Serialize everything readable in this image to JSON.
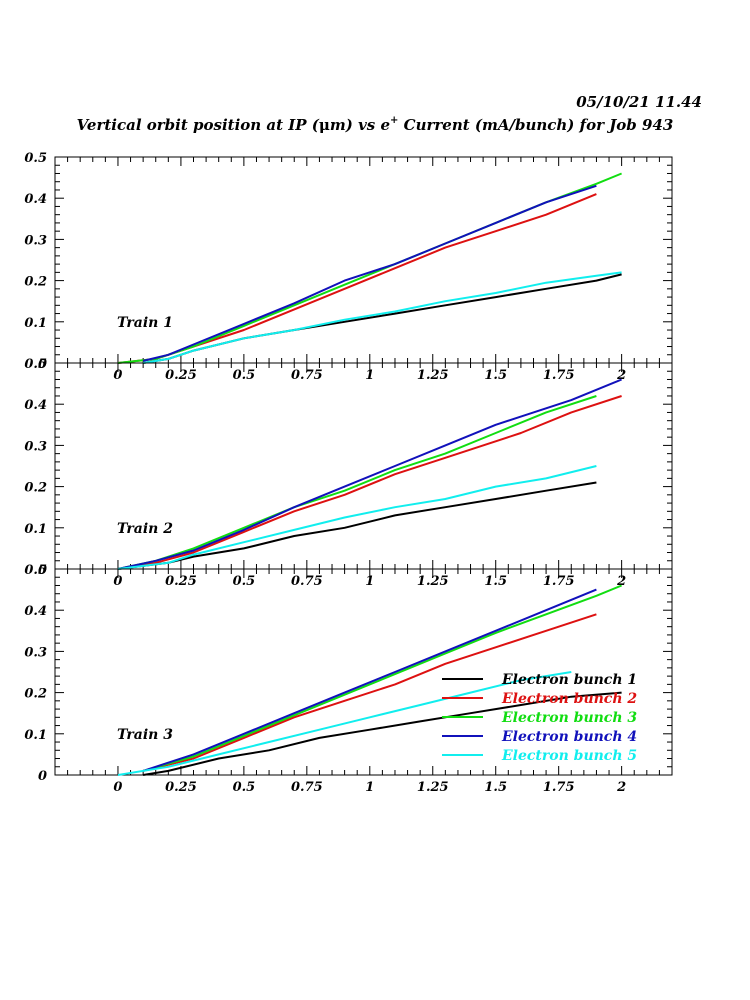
{
  "header": {
    "timestamp": "05/10/21   11.44",
    "title_prefix": "Vertical orbit position at IP (",
    "title_mu": "μ",
    "title_mid": "m) vs e",
    "title_sup": "+",
    "title_suffix": " Current (mA/bunch) for Job 943"
  },
  "colors": {
    "bunch1": "#000000",
    "bunch2": "#dd1111",
    "bunch3": "#11dd11",
    "bunch4": "#1111bb",
    "bunch5": "#11eeee"
  },
  "chart_data": [
    {
      "type": "line",
      "panel_label": "Train 1",
      "xlim": [
        -0.25,
        2.2
      ],
      "ylim": [
        0,
        0.5
      ],
      "x_ticks": [
        "0",
        "0.25",
        "0.5",
        "0.75",
        "1",
        "1.25",
        "1.5",
        "1.75",
        "2"
      ],
      "y_ticks": [
        "0",
        "0.1",
        "0.2",
        "0.3",
        "0.4",
        "0.5"
      ],
      "series": [
        {
          "color_key": "bunch1",
          "x": [
            0.1,
            0.2,
            0.3,
            0.5,
            0.7,
            0.9,
            1.1,
            1.3,
            1.5,
            1.7,
            1.9,
            2.0
          ],
          "y": [
            0,
            0.01,
            0.03,
            0.06,
            0.08,
            0.1,
            0.12,
            0.14,
            0.16,
            0.18,
            0.2,
            0.215
          ]
        },
        {
          "color_key": "bunch2",
          "x": [
            0,
            0.15,
            0.3,
            0.5,
            0.7,
            0.9,
            1.1,
            1.3,
            1.5,
            1.7,
            1.9
          ],
          "y": [
            0,
            0.01,
            0.04,
            0.08,
            0.13,
            0.18,
            0.23,
            0.28,
            0.32,
            0.36,
            0.41
          ]
        },
        {
          "color_key": "bunch3",
          "x": [
            0,
            0.15,
            0.3,
            0.5,
            0.7,
            0.9,
            1.1,
            1.3,
            1.5,
            1.7,
            1.9,
            2.0
          ],
          "y": [
            0,
            0.01,
            0.04,
            0.09,
            0.14,
            0.19,
            0.24,
            0.29,
            0.34,
            0.39,
            0.435,
            0.46
          ]
        },
        {
          "color_key": "bunch4",
          "x": [
            0.1,
            0.2,
            0.3,
            0.5,
            0.7,
            0.9,
            1.1,
            1.3,
            1.5,
            1.7,
            1.9
          ],
          "y": [
            0.005,
            0.02,
            0.045,
            0.095,
            0.145,
            0.2,
            0.24,
            0.29,
            0.34,
            0.39,
            0.43
          ]
        },
        {
          "color_key": "bunch5",
          "x": [
            0.1,
            0.2,
            0.3,
            0.5,
            0.7,
            0.9,
            1.1,
            1.3,
            1.5,
            1.7,
            1.9,
            2.0
          ],
          "y": [
            0,
            0.01,
            0.03,
            0.06,
            0.08,
            0.105,
            0.125,
            0.15,
            0.17,
            0.195,
            0.212,
            0.22
          ]
        }
      ]
    },
    {
      "type": "line",
      "panel_label": "Train 2",
      "xlim": [
        -0.25,
        2.2
      ],
      "ylim": [
        0,
        0.5
      ],
      "x_ticks": [
        "0",
        "0.25",
        "0.5",
        "0.75",
        "1",
        "1.25",
        "1.5",
        "1.75",
        "2"
      ],
      "y_ticks": [
        "0",
        "0.1",
        "0.2",
        "0.3",
        "0.4",
        "0.5"
      ],
      "series": [
        {
          "color_key": "bunch1",
          "x": [
            0,
            0.2,
            0.3,
            0.5,
            0.7,
            0.9,
            1.1,
            1.3,
            1.5,
            1.7,
            1.9
          ],
          "y": [
            0,
            0.015,
            0.03,
            0.05,
            0.08,
            0.1,
            0.13,
            0.15,
            0.17,
            0.19,
            0.21
          ]
        },
        {
          "color_key": "bunch2",
          "x": [
            0,
            0.15,
            0.3,
            0.5,
            0.7,
            0.9,
            1.1,
            1.3,
            1.5,
            1.6,
            1.8,
            2.0
          ],
          "y": [
            0,
            0.015,
            0.04,
            0.09,
            0.14,
            0.18,
            0.23,
            0.27,
            0.31,
            0.33,
            0.38,
            0.42
          ]
        },
        {
          "color_key": "bunch3",
          "x": [
            0,
            0.15,
            0.3,
            0.5,
            0.7,
            0.9,
            1.1,
            1.3,
            1.5,
            1.7,
            1.9
          ],
          "y": [
            0,
            0.02,
            0.05,
            0.1,
            0.15,
            0.19,
            0.24,
            0.28,
            0.33,
            0.38,
            0.42
          ]
        },
        {
          "color_key": "bunch4",
          "x": [
            0,
            0.15,
            0.3,
            0.5,
            0.7,
            0.9,
            1.1,
            1.3,
            1.5,
            1.6,
            1.8,
            2.0
          ],
          "y": [
            0,
            0.02,
            0.045,
            0.095,
            0.15,
            0.2,
            0.25,
            0.3,
            0.35,
            0.37,
            0.41,
            0.46
          ]
        },
        {
          "color_key": "bunch5",
          "x": [
            0,
            0.2,
            0.3,
            0.5,
            0.7,
            0.9,
            1.1,
            1.3,
            1.5,
            1.7,
            1.9
          ],
          "y": [
            0,
            0.015,
            0.035,
            0.065,
            0.095,
            0.125,
            0.15,
            0.17,
            0.2,
            0.22,
            0.25
          ]
        }
      ]
    },
    {
      "type": "line",
      "panel_label": "Train 3",
      "xlim": [
        -0.25,
        2.2
      ],
      "ylim": [
        0,
        0.5
      ],
      "x_ticks": [
        "0",
        "0.25",
        "0.5",
        "0.75",
        "1",
        "1.25",
        "1.5",
        "1.75",
        "2"
      ],
      "y_ticks": [
        "0",
        "0.1",
        "0.2",
        "0.3",
        "0.4",
        "0.5"
      ],
      "legend": {
        "placement": "lower-right",
        "entries": [
          "Electron bunch 1",
          "Electron bunch 2",
          "Electron bunch 3",
          "Electron bunch 4",
          "Electron bunch 5"
        ]
      },
      "series": [
        {
          "name": "Electron bunch 1",
          "color_key": "bunch1",
          "x": [
            0.1,
            0.2,
            0.4,
            0.6,
            0.8,
            1.0,
            1.2,
            1.4,
            1.6,
            1.8,
            2.0
          ],
          "y": [
            0,
            0.01,
            0.04,
            0.06,
            0.09,
            0.11,
            0.13,
            0.15,
            0.17,
            0.19,
            0.2
          ]
        },
        {
          "name": "Electron bunch 2",
          "color_key": "bunch2",
          "x": [
            0.1,
            0.3,
            0.5,
            0.7,
            0.9,
            1.1,
            1.3,
            1.5,
            1.7,
            1.9
          ],
          "y": [
            0.01,
            0.04,
            0.09,
            0.14,
            0.18,
            0.22,
            0.27,
            0.31,
            0.35,
            0.39
          ]
        },
        {
          "name": "Electron bunch 3",
          "color_key": "bunch3",
          "x": [
            0.1,
            0.3,
            0.5,
            0.7,
            0.9,
            1.1,
            1.3,
            1.5,
            1.7,
            1.9,
            2.0
          ],
          "y": [
            0.01,
            0.045,
            0.095,
            0.145,
            0.195,
            0.245,
            0.295,
            0.345,
            0.39,
            0.435,
            0.46
          ]
        },
        {
          "name": "Electron bunch 4",
          "color_key": "bunch4",
          "x": [
            0.1,
            0.3,
            0.5,
            0.7,
            0.9,
            1.1,
            1.3,
            1.5,
            1.7,
            1.9
          ],
          "y": [
            0.01,
            0.05,
            0.1,
            0.15,
            0.2,
            0.25,
            0.3,
            0.35,
            0.4,
            0.45
          ]
        },
        {
          "name": "Electron bunch 5",
          "color_key": "bunch5",
          "x": [
            0,
            0.2,
            0.4,
            0.6,
            0.8,
            1.0,
            1.2,
            1.4,
            1.6,
            1.8
          ],
          "y": [
            0,
            0.02,
            0.05,
            0.08,
            0.11,
            0.14,
            0.17,
            0.2,
            0.23,
            0.25
          ]
        }
      ]
    }
  ]
}
